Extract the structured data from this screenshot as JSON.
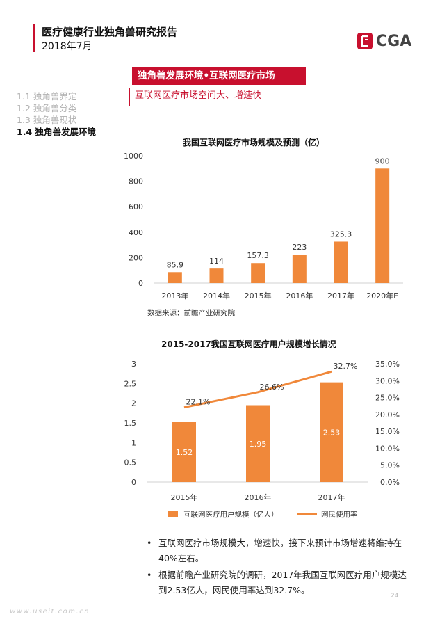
{
  "header": {
    "title": "医疗健康行业独角兽研究报告",
    "date": "2018年7月",
    "logo_text": "CGA"
  },
  "section": {
    "banner": "独角兽发展环境•互联网医疗市场",
    "subtitle": "互联网医疗市场空间大、增速快"
  },
  "toc": {
    "items": [
      {
        "label": "1.1 独角兽界定",
        "active": false
      },
      {
        "label": "1.2 独角兽分类",
        "active": false
      },
      {
        "label": "1.3 独角兽现状",
        "active": false
      },
      {
        "label": "1.4 独角兽发展环境",
        "active": true
      }
    ]
  },
  "chart_data": [
    {
      "type": "bar",
      "title": "我国互联网医疗市场规模及预测（亿）",
      "categories": [
        "2013年",
        "2014年",
        "2015年",
        "2016年",
        "2017年",
        "2020年E"
      ],
      "values": [
        85.9,
        114,
        157.3,
        223,
        325.3,
        900
      ],
      "value_labels": [
        "85.9",
        "114",
        "157.3",
        "223",
        "325.3",
        "900"
      ],
      "ylim": [
        0,
        1000
      ],
      "yticks": [
        "0",
        "200",
        "400",
        "600",
        "800",
        "1000"
      ],
      "grid": false,
      "bar_color": "#f0883a",
      "source": "数据来源：前瞻产业研究院"
    },
    {
      "type": "bar+line",
      "title": "2015-2017我国互联网医疗用户规模增长情况",
      "categories": [
        "2015年",
        "2016年",
        "2017年"
      ],
      "series": [
        {
          "name": "互联网医疗用户规模（亿人）",
          "type": "bar",
          "values": [
            1.52,
            1.95,
            2.53
          ],
          "labels": [
            "1.52",
            "1.95",
            "2.53"
          ],
          "color": "#f0883a"
        },
        {
          "name": "网民使用率",
          "type": "line",
          "values": [
            22.1,
            26.6,
            32.7
          ],
          "labels": [
            "22.1%",
            "26.6%",
            "32.7%"
          ],
          "color": "#f0883a"
        }
      ],
      "ylim": [
        0,
        3
      ],
      "yticks": [
        "0",
        "0.5",
        "1",
        "1.5",
        "2",
        "2.5",
        "3"
      ],
      "y2lim": [
        0,
        35
      ],
      "y2ticks": [
        "0.0%",
        "5.0%",
        "10.0%",
        "15.0%",
        "20.0%",
        "25.0%",
        "30.0%",
        "35.0%"
      ],
      "legend_position": "bottom"
    }
  ],
  "bullets": [
    "互联网医疗市场规模大，增速快，接下来预计市场增速将维持在40%左右。",
    "根据前瞻产业研究院的调研，2017年我国互联网医疗用户规模达到2.53亿人，网民使用率达到32.7%。"
  ],
  "bullet_symbol": "•",
  "page_number": "24",
  "watermark": "www.useit.com.cn"
}
